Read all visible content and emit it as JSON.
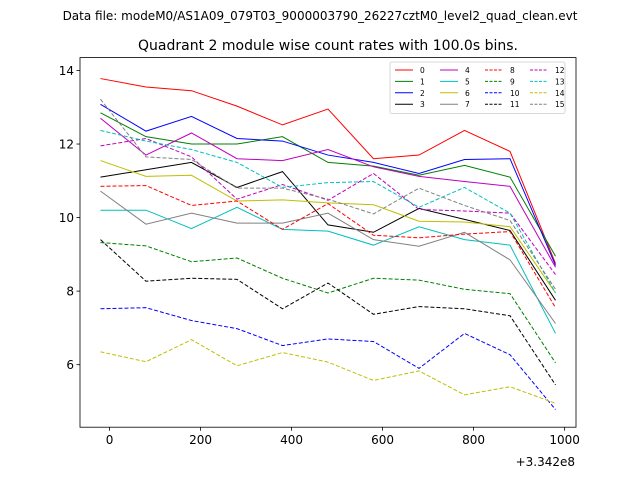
{
  "suptitle": "Data file: modeM0/AS1A09_079T03_9000003790_26227cztM0_level2_quad_clean.evt",
  "chart_data": {
    "type": "line",
    "title": "Quadrant 2 module wise count rates with 100.0s bins.",
    "xlabel": "",
    "ylabel": "",
    "x_offset_label": "+3.342e8",
    "x": [
      -20,
      80,
      180,
      280,
      380,
      480,
      580,
      680,
      780,
      880,
      980
    ],
    "xlim": [
      -65,
      1025
    ],
    "ylim": [
      4.3,
      14.35
    ],
    "xticks": [
      0,
      200,
      400,
      600,
      800,
      1000
    ],
    "yticks": [
      6,
      8,
      10,
      12,
      14
    ],
    "grid": false,
    "legend": {
      "placement": "top-right",
      "columns": 4
    },
    "series": [
      {
        "name": "0",
        "color": "#ff0000",
        "dashed": false,
        "values": [
          13.78,
          13.55,
          13.45,
          13.03,
          12.52,
          12.95,
          11.6,
          11.7,
          12.37,
          11.8,
          8.75
        ]
      },
      {
        "name": "1",
        "color": "#008000",
        "dashed": false,
        "values": [
          12.85,
          12.2,
          12.0,
          12.0,
          12.2,
          11.5,
          11.4,
          11.15,
          11.42,
          11.1,
          8.95
        ]
      },
      {
        "name": "2",
        "color": "#0000ff",
        "dashed": false,
        "values": [
          13.08,
          12.35,
          12.75,
          12.15,
          12.08,
          11.7,
          11.5,
          11.2,
          11.58,
          11.6,
          8.7
        ]
      },
      {
        "name": "3",
        "color": "#000000",
        "dashed": false,
        "values": [
          11.1,
          11.3,
          11.5,
          10.82,
          11.25,
          9.8,
          9.6,
          10.25,
          9.95,
          9.65,
          7.75
        ]
      },
      {
        "name": "4",
        "color": "#bf00bf",
        "dashed": false,
        "values": [
          12.7,
          11.7,
          12.3,
          11.6,
          11.55,
          11.85,
          11.38,
          11.12,
          10.98,
          10.85,
          8.65
        ]
      },
      {
        "name": "5",
        "color": "#00bfbf",
        "dashed": false,
        "values": [
          10.2,
          10.2,
          9.7,
          10.28,
          9.68,
          9.63,
          9.25,
          9.75,
          9.4,
          9.25,
          6.85
        ]
      },
      {
        "name": "6",
        "color": "#bfbf00",
        "dashed": false,
        "values": [
          11.55,
          11.12,
          11.15,
          10.45,
          10.48,
          10.4,
          10.35,
          9.9,
          9.88,
          9.75,
          7.95
        ]
      },
      {
        "name": "7",
        "color": "#808080",
        "dashed": false,
        "values": [
          10.72,
          9.82,
          10.12,
          9.85,
          9.85,
          10.12,
          9.4,
          9.22,
          9.6,
          8.85,
          7.12
        ]
      },
      {
        "name": "8",
        "color": "#ff0000",
        "dashed": true,
        "values": [
          10.85,
          10.87,
          10.33,
          10.45,
          9.68,
          10.38,
          9.52,
          9.45,
          9.55,
          9.62,
          7.55
        ]
      },
      {
        "name": "9",
        "color": "#008000",
        "dashed": true,
        "values": [
          9.32,
          9.23,
          8.8,
          8.9,
          8.35,
          7.95,
          8.35,
          8.3,
          8.05,
          7.93,
          6.05
        ]
      },
      {
        "name": "10",
        "color": "#0000ff",
        "dashed": true,
        "values": [
          7.52,
          7.55,
          7.2,
          6.98,
          6.52,
          6.7,
          6.63,
          5.9,
          6.85,
          6.27,
          4.78
        ]
      },
      {
        "name": "11",
        "color": "#000000",
        "dashed": true,
        "values": [
          9.4,
          8.27,
          8.35,
          8.32,
          7.52,
          8.22,
          7.37,
          7.58,
          7.52,
          7.33,
          5.45
        ]
      },
      {
        "name": "12",
        "color": "#bf00bf",
        "dashed": true,
        "values": [
          11.95,
          12.15,
          11.65,
          10.5,
          10.9,
          10.47,
          11.2,
          10.22,
          10.18,
          10.12,
          8.45
        ]
      },
      {
        "name": "13",
        "color": "#00bfbf",
        "dashed": true,
        "values": [
          12.37,
          12.08,
          11.85,
          11.5,
          10.82,
          10.95,
          10.98,
          10.28,
          10.82,
          10.12,
          7.95
        ]
      },
      {
        "name": "14",
        "color": "#bfbf00",
        "dashed": true,
        "values": [
          6.35,
          6.08,
          6.68,
          5.97,
          6.33,
          6.07,
          5.57,
          5.83,
          5.18,
          5.4,
          4.95
        ]
      },
      {
        "name": "15",
        "color": "#808080",
        "dashed": true,
        "values": [
          13.22,
          11.65,
          11.58,
          10.8,
          10.8,
          10.5,
          10.1,
          10.8,
          10.33,
          9.92,
          8.05
        ]
      }
    ]
  }
}
